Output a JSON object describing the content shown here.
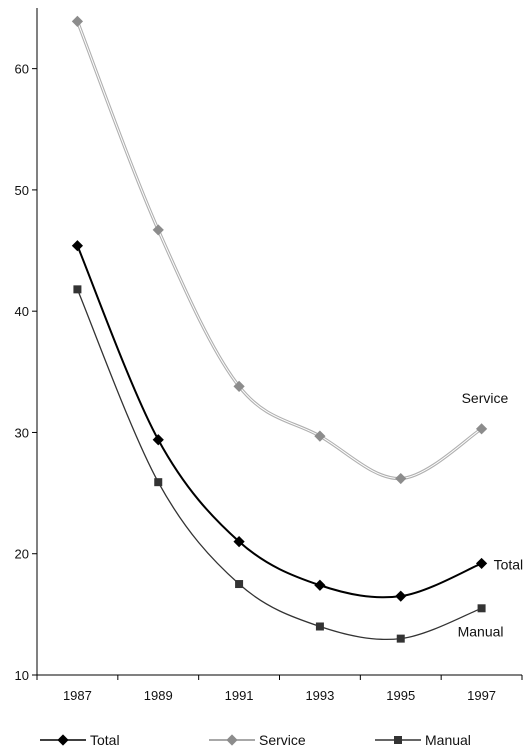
{
  "chart_data": {
    "type": "line",
    "title": "",
    "xlabel": "",
    "ylabel": "",
    "x": [
      1987,
      1989,
      1991,
      1993,
      1995,
      1997
    ],
    "xlim": [
      1986,
      1998
    ],
    "ylim": [
      10,
      65
    ],
    "yticks": [
      10,
      20,
      30,
      40,
      50,
      60
    ],
    "grid": false,
    "legend_position": "bottom",
    "series": [
      {
        "name": "Total",
        "values": [
          45.4,
          29.4,
          21.0,
          17.4,
          16.5,
          19.2
        ],
        "color": "#000000",
        "marker": "diamond",
        "end_label": "Total"
      },
      {
        "name": "Service",
        "values": [
          63.9,
          46.7,
          33.8,
          29.7,
          26.2,
          30.3
        ],
        "color": "#8c8c8c",
        "marker": "diamond",
        "end_label": "Service"
      },
      {
        "name": "Manual",
        "values": [
          41.8,
          25.9,
          17.5,
          14.0,
          13.0,
          15.5
        ],
        "color": "#333333",
        "marker": "square",
        "end_label": "Manual"
      }
    ]
  }
}
